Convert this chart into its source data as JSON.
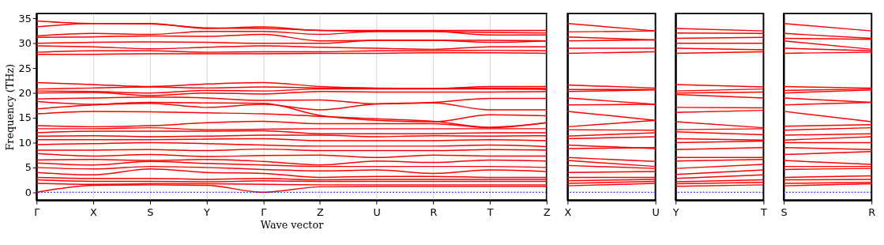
{
  "chart_data": [
    {
      "type": "line",
      "ylabel": "Frequency (THz)",
      "xlabel": "Wave vector",
      "categories": [
        "Γ",
        "X",
        "S",
        "Y",
        "Γ",
        "Z",
        "U",
        "R",
        "T",
        "Z"
      ],
      "ylim": [
        -1.6,
        36
      ],
      "yticks": [
        0,
        5,
        10,
        15,
        20,
        25,
        30,
        35
      ],
      "grid": "x",
      "ref_lines": [
        {
          "axis": "y",
          "value": 0,
          "color": "#0000ff",
          "line_style": "dotted"
        }
      ],
      "series": [
        {
          "color": "#ff0000",
          "values": [
            34.5,
            34.0,
            34.0,
            33.0,
            33.3,
            32.6,
            32.6,
            32.6,
            32.6,
            32.6
          ]
        },
        {
          "color": "#ff0000",
          "values": [
            33.3,
            34.0,
            33.9,
            33.1,
            33.0,
            32.6,
            32.4,
            32.4,
            32.2,
            32.1
          ]
        },
        {
          "color": "#ff0000",
          "values": [
            31.5,
            32.0,
            31.8,
            32.4,
            32.4,
            31.8,
            32.4,
            32.4,
            31.7,
            31.7
          ]
        },
        {
          "color": "#ff0000",
          "values": [
            31.2,
            31.3,
            31.5,
            31.4,
            31.8,
            30.5,
            30.6,
            30.6,
            30.6,
            30.5
          ]
        },
        {
          "color": "#ff0000",
          "values": [
            30.0,
            30.2,
            30.3,
            30.2,
            30.0,
            30.0,
            30.6,
            30.6,
            30.2,
            30.5
          ]
        },
        {
          "color": "#ff0000",
          "values": [
            29.5,
            29.3,
            28.9,
            29.2,
            29.5,
            29.2,
            29.0,
            28.8,
            29.3,
            29.3
          ]
        },
        {
          "color": "#ff0000",
          "values": [
            28.2,
            28.5,
            28.5,
            28.2,
            28.3,
            28.3,
            28.5,
            28.5,
            28.6,
            28.5
          ]
        },
        {
          "color": "#ff0000",
          "values": [
            27.8,
            27.8,
            27.9,
            27.9,
            27.9,
            28.0,
            28.0,
            28.1,
            28.1,
            28.0
          ]
        },
        {
          "color": "#ff0000",
          "values": [
            22.1,
            21.7,
            21.3,
            21.8,
            22.1,
            21.3,
            21.0,
            20.9,
            21.3,
            21.3
          ]
        },
        {
          "color": "#ff0000",
          "values": [
            20.8,
            21.0,
            21.2,
            21.0,
            21.2,
            21.0,
            20.9,
            20.9,
            21.0,
            20.9
          ]
        },
        {
          "color": "#ff0000",
          "values": [
            20.4,
            20.3,
            20.0,
            20.5,
            20.4,
            20.8,
            20.8,
            20.8,
            20.8,
            20.7
          ]
        },
        {
          "color": "#ff0000",
          "values": [
            20.0,
            20.1,
            19.5,
            20.0,
            19.8,
            20.3,
            20.2,
            20.2,
            20.2,
            20.3
          ]
        },
        {
          "color": "#ff0000",
          "values": [
            18.8,
            19.0,
            19.2,
            19.0,
            18.5,
            18.6,
            17.8,
            18.1,
            18.9,
            18.9
          ]
        },
        {
          "color": "#ff0000",
          "values": [
            18.3,
            17.7,
            17.9,
            17.1,
            17.7,
            16.6,
            17.8,
            18.0,
            16.6,
            16.6
          ]
        },
        {
          "color": "#ff0000",
          "values": [
            16.8,
            17.6,
            18.1,
            18.0,
            17.9,
            15.5,
            14.5,
            14.2,
            15.6,
            15.4
          ]
        },
        {
          "color": "#ff0000",
          "values": [
            15.8,
            16.3,
            16.2,
            16.0,
            15.8,
            15.3,
            14.8,
            14.3,
            13.1,
            14.0
          ]
        },
        {
          "color": "#ff0000",
          "values": [
            13.4,
            13.2,
            13.4,
            14.0,
            14.3,
            13.8,
            13.8,
            13.8,
            13.0,
            14.0
          ]
        },
        {
          "color": "#ff0000",
          "values": [
            12.8,
            12.8,
            13.0,
            12.6,
            12.7,
            12.8,
            12.8,
            12.8,
            12.8,
            12.8
          ]
        },
        {
          "color": "#ff0000",
          "values": [
            12.0,
            12.3,
            12.3,
            12.3,
            12.4,
            11.8,
            11.8,
            11.8,
            12.0,
            12.0
          ]
        },
        {
          "color": "#ff0000",
          "values": [
            11.3,
            11.4,
            11.2,
            11.3,
            11.5,
            11.5,
            11.2,
            11.4,
            11.3,
            11.4
          ]
        },
        {
          "color": "#ff0000",
          "values": [
            10.6,
            10.6,
            10.6,
            10.7,
            10.8,
            10.4,
            10.4,
            10.4,
            10.6,
            10.4
          ]
        },
        {
          "color": "#ff0000",
          "values": [
            9.6,
            9.8,
            10.0,
            9.8,
            9.5,
            9.3,
            9.3,
            9.3,
            9.5,
            9.2
          ]
        },
        {
          "color": "#ff0000",
          "values": [
            8.5,
            8.5,
            8.6,
            8.4,
            8.7,
            8.4,
            8.4,
            8.4,
            8.6,
            8.5
          ]
        },
        {
          "color": "#ff0000",
          "values": [
            7.8,
            7.3,
            7.6,
            7.2,
            7.4,
            7.5,
            7.0,
            7.5,
            7.3,
            7.3
          ]
        },
        {
          "color": "#ff0000",
          "values": [
            6.5,
            6.6,
            6.4,
            6.6,
            6.2,
            5.5,
            6.3,
            6.0,
            6.5,
            6.3
          ]
        },
        {
          "color": "#ff0000",
          "values": [
            5.9,
            5.5,
            6.2,
            5.8,
            5.5,
            5.2,
            5.2,
            5.2,
            5.2,
            5.0
          ]
        },
        {
          "color": "#ff0000",
          "values": [
            5.0,
            4.7,
            5.2,
            5.0,
            4.6,
            4.3,
            4.5,
            3.8,
            4.5,
            4.2
          ]
        },
        {
          "color": "#ff0000",
          "values": [
            4.0,
            3.5,
            4.7,
            4.0,
            3.8,
            3.0,
            3.2,
            3.2,
            3.0,
            3.0
          ]
        },
        {
          "color": "#ff0000",
          "values": [
            3.0,
            2.8,
            2.8,
            2.6,
            2.8,
            2.5,
            2.6,
            2.6,
            2.6,
            2.6
          ]
        },
        {
          "color": "#ff0000",
          "values": [
            2.5,
            2.2,
            2.2,
            2.1,
            2.3,
            2.2,
            2.2,
            2.2,
            2.2,
            2.2
          ]
        },
        {
          "color": "#ff0000",
          "values": [
            1.8,
            1.6,
            1.7,
            1.7,
            1.6,
            1.5,
            1.5,
            1.5,
            1.5,
            1.5
          ]
        },
        {
          "color": "#ff0000",
          "values": [
            0,
            1.4,
            1.5,
            1.4,
            0,
            1.1,
            1.2,
            1.2,
            1.2,
            1.2
          ]
        }
      ]
    },
    {
      "type": "line",
      "categories": [
        "X",
        "U"
      ],
      "ylim": [
        -1.6,
        36
      ],
      "tick_labels": "x",
      "ref_lines": [
        {
          "axis": "y",
          "value": 0,
          "color": "#0000ff",
          "line_style": "dotted"
        }
      ],
      "series": [
        {
          "color": "#ff0000",
          "values": [
            34.0,
            32.5
          ]
        },
        {
          "color": "#ff0000",
          "values": [
            32.3,
            32.5
          ]
        },
        {
          "color": "#ff0000",
          "values": [
            31.3,
            30.7
          ]
        },
        {
          "color": "#ff0000",
          "values": [
            30.5,
            30.7
          ]
        },
        {
          "color": "#ff0000",
          "values": [
            29.0,
            29.0
          ]
        },
        {
          "color": "#ff0000",
          "values": [
            28.0,
            28.3
          ]
        },
        {
          "color": "#ff0000",
          "values": [
            21.6,
            21.0
          ]
        },
        {
          "color": "#ff0000",
          "values": [
            20.7,
            20.7
          ]
        },
        {
          "color": "#ff0000",
          "values": [
            20.3,
            20.6
          ]
        },
        {
          "color": "#ff0000",
          "values": [
            19.0,
            17.7
          ]
        },
        {
          "color": "#ff0000",
          "values": [
            17.6,
            17.7
          ]
        },
        {
          "color": "#ff0000",
          "values": [
            16.3,
            14.5
          ]
        },
        {
          "color": "#ff0000",
          "values": [
            13.2,
            14.5
          ]
        },
        {
          "color": "#ff0000",
          "values": [
            12.6,
            12.5
          ]
        },
        {
          "color": "#ff0000",
          "values": [
            11.3,
            12.0
          ]
        },
        {
          "color": "#ff0000",
          "values": [
            10.8,
            11.2
          ]
        },
        {
          "color": "#ff0000",
          "values": [
            9.5,
            8.8
          ]
        },
        {
          "color": "#ff0000",
          "values": [
            8.8,
            9.0
          ]
        },
        {
          "color": "#ff0000",
          "values": [
            7.0,
            6.2
          ]
        },
        {
          "color": "#ff0000",
          "values": [
            6.4,
            5.2
          ]
        },
        {
          "color": "#ff0000",
          "values": [
            5.4,
            4.8
          ]
        },
        {
          "color": "#ff0000",
          "values": [
            4.0,
            4.2
          ]
        },
        {
          "color": "#ff0000",
          "values": [
            3.0,
            3.0
          ]
        },
        {
          "color": "#ff0000",
          "values": [
            2.3,
            2.6
          ]
        },
        {
          "color": "#ff0000",
          "values": [
            1.8,
            2.2
          ]
        },
        {
          "color": "#ff0000",
          "values": [
            1.3,
            1.8
          ]
        }
      ]
    },
    {
      "type": "line",
      "categories": [
        "Y",
        "T"
      ],
      "ylim": [
        -1.6,
        36
      ],
      "tick_labels": "x",
      "ref_lines": [
        {
          "axis": "y",
          "value": 0,
          "color": "#0000ff",
          "line_style": "dotted"
        }
      ],
      "series": [
        {
          "color": "#ff0000",
          "values": [
            33.0,
            32.5
          ]
        },
        {
          "color": "#ff0000",
          "values": [
            32.1,
            32.0
          ]
        },
        {
          "color": "#ff0000",
          "values": [
            31.0,
            31.2
          ]
        },
        {
          "color": "#ff0000",
          "values": [
            30.0,
            30.0
          ]
        },
        {
          "color": "#ff0000",
          "values": [
            29.0,
            28.7
          ]
        },
        {
          "color": "#ff0000",
          "values": [
            28.0,
            28.3
          ]
        },
        {
          "color": "#ff0000",
          "values": [
            21.7,
            21.2
          ]
        },
        {
          "color": "#ff0000",
          "values": [
            20.4,
            20.8
          ]
        },
        {
          "color": "#ff0000",
          "values": [
            20.0,
            20.2
          ]
        },
        {
          "color": "#ff0000",
          "values": [
            19.7,
            19.0
          ]
        },
        {
          "color": "#ff0000",
          "values": [
            17.1,
            17.0
          ]
        },
        {
          "color": "#ff0000",
          "values": [
            16.1,
            16.5
          ]
        },
        {
          "color": "#ff0000",
          "values": [
            14.2,
            13.0
          ]
        },
        {
          "color": "#ff0000",
          "values": [
            12.6,
            12.8
          ]
        },
        {
          "color": "#ff0000",
          "values": [
            12.2,
            11.6
          ]
        },
        {
          "color": "#ff0000",
          "values": [
            10.8,
            10.5
          ]
        },
        {
          "color": "#ff0000",
          "values": [
            10.0,
            10.3
          ]
        },
        {
          "color": "#ff0000",
          "values": [
            8.6,
            9.0
          ]
        },
        {
          "color": "#ff0000",
          "values": [
            7.0,
            7.0
          ]
        },
        {
          "color": "#ff0000",
          "values": [
            6.3,
            6.6
          ]
        },
        {
          "color": "#ff0000",
          "values": [
            4.8,
            5.6
          ]
        },
        {
          "color": "#ff0000",
          "values": [
            3.6,
            4.5
          ]
        },
        {
          "color": "#ff0000",
          "values": [
            2.8,
            3.5
          ]
        },
        {
          "color": "#ff0000",
          "values": [
            2.1,
            2.5
          ]
        },
        {
          "color": "#ff0000",
          "values": [
            1.7,
            2.0
          ]
        },
        {
          "color": "#ff0000",
          "values": [
            1.2,
            1.5
          ]
        }
      ]
    },
    {
      "type": "line",
      "categories": [
        "S",
        "R"
      ],
      "ylim": [
        -1.6,
        36
      ],
      "tick_labels": "x",
      "ref_lines": [
        {
          "axis": "y",
          "value": 0,
          "color": "#0000ff",
          "line_style": "dotted"
        }
      ],
      "series": [
        {
          "color": "#ff0000",
          "values": [
            34.0,
            32.5
          ]
        },
        {
          "color": "#ff0000",
          "values": [
            32.0,
            31.0
          ]
        },
        {
          "color": "#ff0000",
          "values": [
            31.0,
            30.8
          ]
        },
        {
          "color": "#ff0000",
          "values": [
            30.5,
            28.8
          ]
        },
        {
          "color": "#ff0000",
          "values": [
            29.0,
            28.5
          ]
        },
        {
          "color": "#ff0000",
          "values": [
            28.0,
            28.2
          ]
        },
        {
          "color": "#ff0000",
          "values": [
            21.3,
            21.0
          ]
        },
        {
          "color": "#ff0000",
          "values": [
            20.5,
            20.8
          ]
        },
        {
          "color": "#ff0000",
          "values": [
            20.0,
            20.6
          ]
        },
        {
          "color": "#ff0000",
          "values": [
            19.0,
            18.1
          ]
        },
        {
          "color": "#ff0000",
          "values": [
            17.6,
            18.1
          ]
        },
        {
          "color": "#ff0000",
          "values": [
            16.3,
            14.2
          ]
        },
        {
          "color": "#ff0000",
          "values": [
            13.3,
            13.6
          ]
        },
        {
          "color": "#ff0000",
          "values": [
            12.5,
            13.0
          ]
        },
        {
          "color": "#ff0000",
          "values": [
            11.5,
            11.8
          ]
        },
        {
          "color": "#ff0000",
          "values": [
            10.5,
            11.2
          ]
        },
        {
          "color": "#ff0000",
          "values": [
            10.0,
            10.0
          ]
        },
        {
          "color": "#ff0000",
          "values": [
            9.0,
            8.6
          ]
        },
        {
          "color": "#ff0000",
          "values": [
            7.6,
            8.2
          ]
        },
        {
          "color": "#ff0000",
          "values": [
            6.4,
            5.6
          ]
        },
        {
          "color": "#ff0000",
          "values": [
            5.2,
            5.2
          ]
        },
        {
          "color": "#ff0000",
          "values": [
            4.6,
            4.8
          ]
        },
        {
          "color": "#ff0000",
          "values": [
            3.0,
            3.3
          ]
        },
        {
          "color": "#ff0000",
          "values": [
            2.5,
            2.6
          ]
        },
        {
          "color": "#ff0000",
          "values": [
            1.8,
            2.0
          ]
        },
        {
          "color": "#ff0000",
          "values": [
            1.3,
            1.7
          ]
        }
      ]
    }
  ]
}
